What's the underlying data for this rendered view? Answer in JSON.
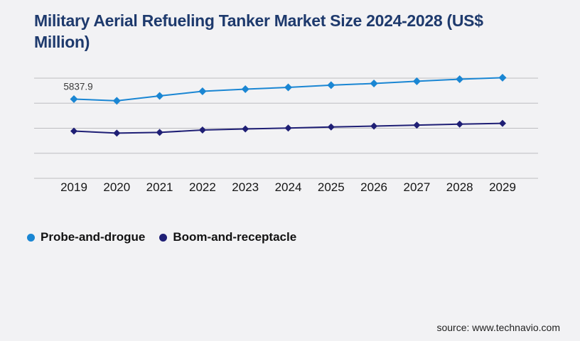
{
  "page": {
    "background_color": "#f2f2f4",
    "source": "source: www.technavio.com"
  },
  "chart_data": {
    "type": "line",
    "title": "Military Aerial Refueling Tanker Market Size 2024-2028 (US$ Million)",
    "title_color": "#1e3a6d",
    "categories": [
      "2019",
      "2020",
      "2021",
      "2022",
      "2023",
      "2024",
      "2025",
      "2026",
      "2027",
      "2028",
      "2029"
    ],
    "series": [
      {
        "name": "Probe-and-drogue",
        "color": "#1a86d3",
        "marker": "diamond",
        "marker_size": 11,
        "values": [
          5837.9,
          5710,
          6070,
          6410,
          6570,
          6700,
          6860,
          6990,
          7150,
          7300,
          7410
        ]
      },
      {
        "name": "Boom-and-receptacle",
        "color": "#1f1f75",
        "marker": "diamond",
        "marker_size": 10,
        "values": [
          3480,
          3330,
          3380,
          3560,
          3640,
          3700,
          3780,
          3850,
          3920,
          3990,
          4050
        ]
      }
    ],
    "data_labels": [
      {
        "series": "Probe-and-drogue",
        "category": "2019",
        "text": "5837.9"
      }
    ],
    "ylim": [
      0,
      7380
    ],
    "gridlines": 5,
    "gridline_color": "#bdbdc1",
    "axis_label_color": "#161616",
    "x_axis_label_size": 17,
    "y_axis_visible": false,
    "legend_position": "bottom-left",
    "legend_marker": "circle"
  }
}
